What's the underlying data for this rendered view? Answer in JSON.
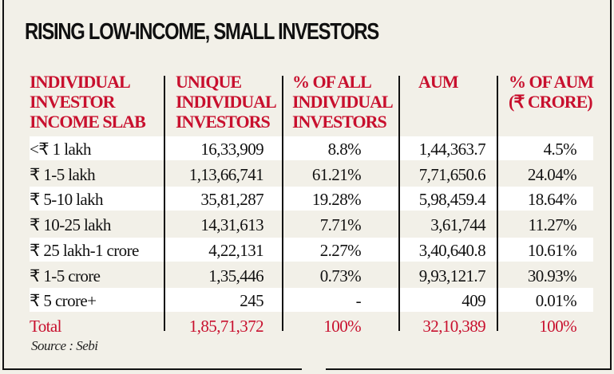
{
  "title": "RISING LOW-INCOME, SMALL INVESTORS",
  "colors": {
    "accent": "#c8102e",
    "background": "#f2f0e8",
    "stripe": "#ffffff"
  },
  "chart_data": {
    "type": "table",
    "title": "RISING LOW-INCOME, SMALL INVESTORS",
    "columns": [
      "INDIVIDUAL\nINVESTOR\nINCOME SLAB",
      "UNIQUE\nINDIVIDUAL\nINVESTORS",
      "% OF ALL\nINDIVIDUAL\nINVESTORS",
      "AUM",
      "% OF AUM\n(₹ CRORE)"
    ],
    "rows": [
      [
        "<₹ 1 lakh",
        "16,33,909",
        "8.8%",
        "1,44,363.7",
        "4.5%"
      ],
      [
        "₹ 1-5 lakh",
        "1,13,66,741",
        "61.21%",
        "7,71,650.6",
        "24.04%"
      ],
      [
        "₹ 5-10 lakh",
        "35,81,287",
        "19.28%",
        "5,98,459.4",
        "18.64%"
      ],
      [
        "₹ 10-25 lakh",
        "14,31,613",
        "7.71%",
        "3,61,744",
        "11.27%"
      ],
      [
        "₹ 25 lakh-1 crore",
        "4,22,131",
        "2.27%",
        "3,40,640.8",
        "10.61%"
      ],
      [
        "₹ 1-5 crore",
        "1,35,446",
        "0.73%",
        "9,93,121.7",
        "30.93%"
      ],
      [
        "₹ 5 crore+",
        "245",
        "-",
        "409",
        "0.01%"
      ]
    ],
    "total": [
      "Total",
      "1,85,71,372",
      "100%",
      "32,10,389",
      "100%"
    ],
    "source": "Source : Sebi"
  }
}
